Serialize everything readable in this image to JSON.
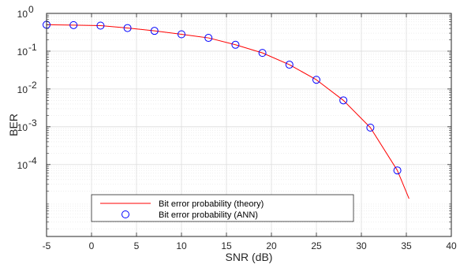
{
  "chart_data": {
    "type": "line",
    "xlabel": "SNR (dB)",
    "ylabel": "BER",
    "xlim": [
      -5,
      40
    ],
    "ylim": [
      1.25e-06,
      1
    ],
    "yscale": "log",
    "grid": true,
    "legend_position": "bottom-center",
    "x_ticks": [
      "-5",
      "0",
      "5",
      "10",
      "15",
      "20",
      "25",
      "30",
      "35",
      "40"
    ],
    "y_ticks": [
      {
        "base": "10",
        "exp": "0",
        "value": 1
      },
      {
        "base": "10",
        "exp": "-1",
        "value": 0.1
      },
      {
        "base": "10",
        "exp": "-2",
        "value": 0.01
      },
      {
        "base": "10",
        "exp": "-3",
        "value": 0.001
      },
      {
        "base": "10",
        "exp": "-4",
        "value": 0.0001
      }
    ],
    "series": [
      {
        "name": "Bit error probability (theory)",
        "style": "line",
        "color": "#ff0000",
        "x": [
          -5,
          -2,
          1,
          4,
          7,
          10,
          13,
          16,
          19,
          22,
          25,
          28,
          31,
          34,
          35.3
        ],
        "y": [
          0.5,
          0.49,
          0.475,
          0.41,
          0.345,
          0.28,
          0.225,
          0.148,
          0.09,
          0.044,
          0.0175,
          0.005,
          0.00095,
          7e-05,
          1.25e-05
        ]
      },
      {
        "name": "Bit error probability (ANN)",
        "style": "marker",
        "marker": "circle",
        "color": "#0000ff",
        "x": [
          -5,
          -2,
          1,
          4,
          7,
          10,
          13,
          16,
          19,
          22,
          25,
          28,
          31,
          34
        ],
        "y": [
          0.5,
          0.49,
          0.475,
          0.41,
          0.345,
          0.28,
          0.225,
          0.148,
          0.09,
          0.044,
          0.0175,
          0.005,
          0.00095,
          7e-05
        ]
      }
    ]
  }
}
